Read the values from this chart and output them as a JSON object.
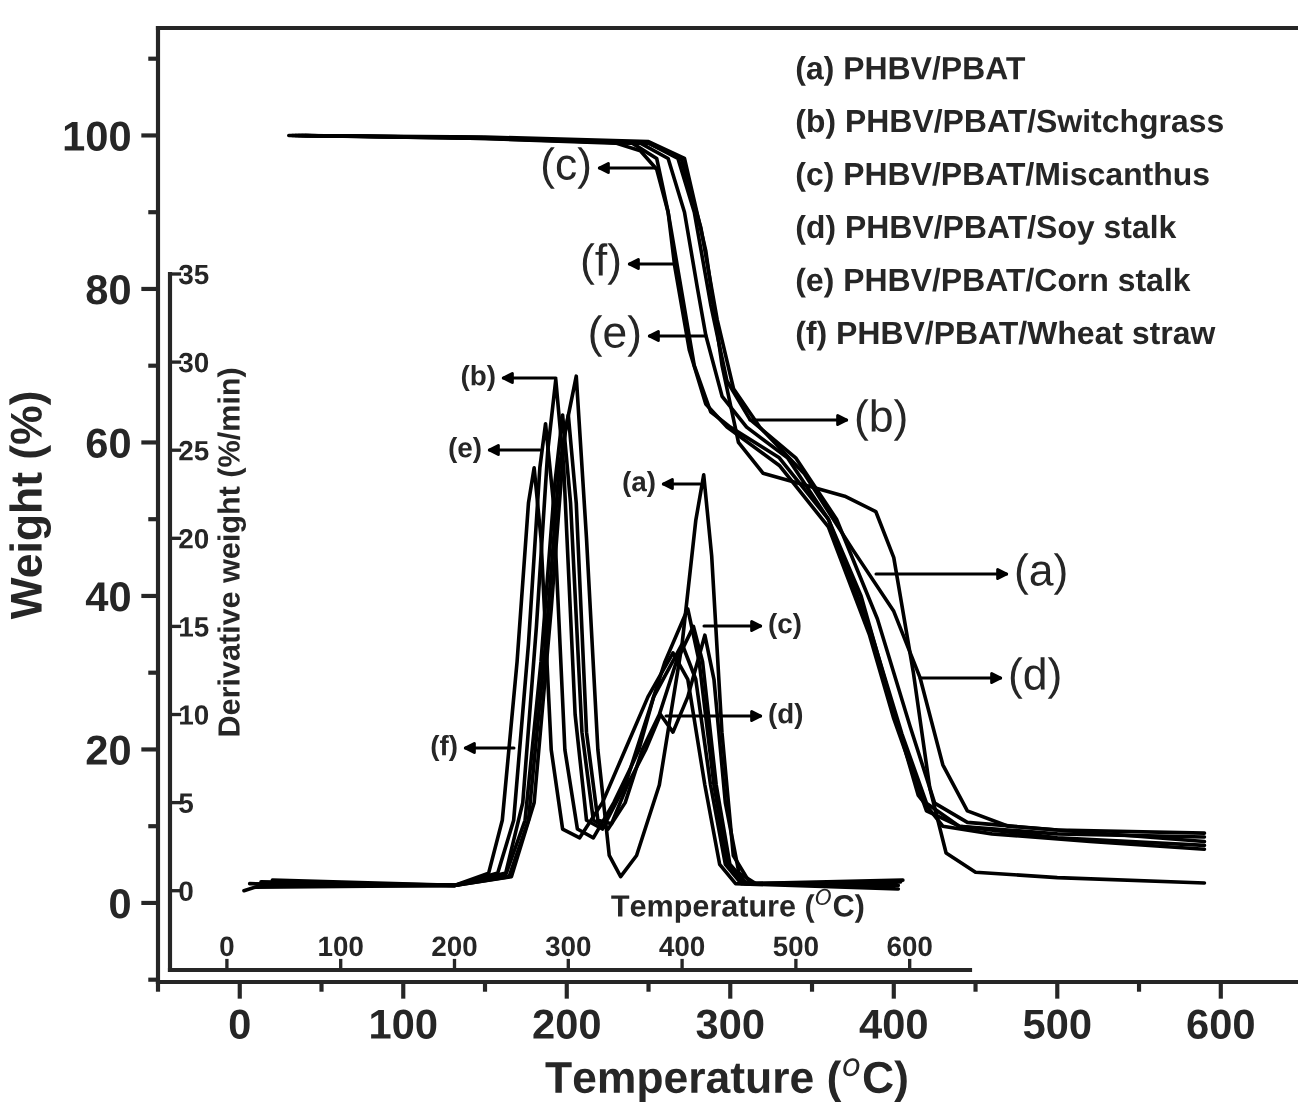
{
  "chart_data": [
    {
      "type": "line",
      "xlabel": "Temperature ($^{o}$C)",
      "ylabel": "Weight (%)",
      "xlim": [
        -50,
        646
      ],
      "ylim": [
        -10.3,
        114
      ],
      "xticks": [
        0,
        100,
        200,
        300,
        400,
        500,
        600
      ],
      "yticks": [
        0,
        20,
        40,
        60,
        80,
        100
      ],
      "grid": false,
      "marker": "none",
      "line_style": "solid",
      "series": [
        {
          "color": "#000000",
          "x": [
            30,
            150,
            250,
            272,
            285,
            295,
            305,
            320,
            345,
            370,
            389,
            400,
            412,
            422,
            432,
            450,
            500,
            590
          ],
          "values": [
            100,
            99.8,
            99.2,
            97,
            85,
            70,
            60,
            56,
            54.5,
            53,
            51,
            45,
            30,
            15,
            6.5,
            4,
            3.3,
            2.6
          ]
        },
        {
          "color": "#000000",
          "x": [
            32,
            150,
            250,
            268,
            278,
            288,
            298,
            312,
            340,
            365,
            390,
            410,
            425,
            445,
            500,
            590
          ],
          "values": [
            100,
            99.7,
            99,
            97,
            90,
            78,
            68,
            63,
            58,
            50,
            37,
            23,
            13,
            10.5,
            9.5,
            9.1
          ]
        },
        {
          "color": "#000000",
          "x": [
            34,
            150,
            230,
            245,
            255,
            262,
            270,
            278,
            288,
            300,
            330,
            360,
            380,
            400,
            415,
            430,
            460,
            520,
            590
          ],
          "values": [
            100,
            99.6,
            99,
            98,
            95.6,
            90,
            80,
            70,
            64,
            62,
            58,
            50,
            40,
            25,
            14,
            10,
            9,
            8,
            7
          ]
        },
        {
          "color": "#000000",
          "x": [
            36,
            150,
            250,
            270,
            282,
            292,
            302,
            318,
            345,
            375,
            400,
            416,
            430,
            445,
            470,
            590
          ],
          "values": [
            100,
            99.7,
            99,
            97,
            88,
            76,
            67,
            62,
            56,
            46,
            38,
            29.4,
            18,
            12,
            10,
            8
          ]
        },
        {
          "color": "#000000",
          "x": [
            38,
            150,
            245,
            262,
            272,
            280,
            285,
            295,
            310,
            335,
            360,
            385,
            405,
            420,
            440,
            500,
            590
          ],
          "values": [
            100,
            99.6,
            99,
            97,
            90,
            80,
            74,
            66,
            62,
            58,
            50,
            36,
            22,
            13,
            10,
            9,
            8.6
          ]
        },
        {
          "color": "#000000",
          "x": [
            40,
            150,
            240,
            255,
            262,
            266,
            275,
            285,
            298,
            330,
            360,
            385,
            400,
            420,
            440,
            500,
            590
          ],
          "values": [
            100,
            99.7,
            99,
            97,
            90,
            83,
            72,
            65,
            62,
            57,
            49,
            35,
            24,
            12,
            10,
            8.5,
            7.5
          ]
        }
      ],
      "annotations": [
        "(a) PHBV/PBAT",
        "(b) PHBV/PBAT/Switchgrass",
        "(c) PHBV/PBAT/Miscanthus",
        "(d) PHBV/PBAT/Soy stalk",
        "(e) PHBV/PBAT/Corn stalk",
        "(f) PHBV/PBAT/Wheat straw",
        "(c)",
        "(f)",
        "(e)",
        "(b)",
        "(a)",
        "(d)"
      ]
    },
    {
      "type": "line",
      "xlabel": "Temperature ($^{O}$C)",
      "ylabel": "Derivative weight (%/min)",
      "xlim": [
        -50,
        653
      ],
      "ylim": [
        -4.5,
        35
      ],
      "xticks": [
        0,
        100,
        200,
        300,
        400,
        500,
        600
      ],
      "yticks": [
        0,
        5,
        10,
        15,
        20,
        25,
        30,
        35
      ],
      "grid": false,
      "marker": "none",
      "line_style": "solid",
      "series": [
        {
          "color": "#000000",
          "x": [
            15,
            30,
            200,
            250,
            270,
            285,
            297,
            307,
            316,
            326,
            336,
            346,
            360,
            380,
            400,
            412,
            419,
            426,
            435,
            445,
            460,
            590
          ],
          "values": [
            0,
            0.3,
            0.3,
            0.8,
            5,
            16,
            26,
            29.2,
            20,
            8,
            2,
            0.8,
            2,
            6,
            14,
            21,
            23.6,
            19,
            9,
            2,
            0.4,
            0.3
          ]
        },
        {
          "color": "#000000",
          "x": [
            20,
            200,
            245,
            260,
            272,
            282,
            289,
            296,
            306,
            316,
            330,
            350,
            365,
            385,
            405,
            415,
            428,
            440,
            455,
            588
          ],
          "values": [
            0.4,
            0.3,
            1,
            5,
            15,
            25,
            29,
            24,
            10,
            4,
            3.5,
            6,
            9,
            13,
            16,
            13,
            6,
            1.5,
            0.4,
            0.4
          ]
        },
        {
          "color": "#000000",
          "x": [
            25,
            200,
            245,
            262,
            276,
            288,
            295,
            302,
            312,
            322,
            335,
            350,
            365,
            380,
            395,
            410,
            418,
            430,
            442,
            457,
            592
          ],
          "values": [
            0.2,
            0.3,
            0.9,
            4,
            13,
            23,
            27,
            22,
            9,
            4,
            3.5,
            5,
            8,
            10,
            13,
            15,
            13,
            6,
            1.5,
            0.4,
            0.5
          ]
        },
        {
          "color": "#000000",
          "x": [
            30,
            200,
            248,
            265,
            280,
            292,
            300,
            307,
            316,
            326,
            338,
            352,
            368,
            381,
            392,
            405,
            420,
            428,
            438,
            450,
            465,
            586
          ],
          "values": [
            0.5,
            0.3,
            0.8,
            4,
            14,
            24,
            27,
            22,
            9,
            4,
            3.8,
            6,
            8,
            10,
            9,
            11,
            14.5,
            12,
            5,
            1,
            0.4,
            0.2
          ]
        },
        {
          "color": "#000000",
          "x": [
            35,
            200,
            238,
            252,
            265,
            275,
            280,
            287,
            297,
            308,
            322,
            340,
            355,
            362,
            375,
            400,
            412,
            425,
            438,
            452,
            594
          ],
          "values": [
            0.3,
            0.3,
            1,
            4,
            14,
            24,
            26.5,
            22,
            8,
            3.5,
            3,
            5,
            7,
            8,
            11,
            14,
            12,
            6,
            1.5,
            0.4,
            0.6
          ]
        },
        {
          "color": "#000000",
          "x": [
            40,
            200,
            230,
            242,
            255,
            265,
            270,
            276,
            285,
            295,
            310,
            330,
            350,
            370,
            392,
            405,
            420,
            433,
            447,
            590
          ],
          "values": [
            0.6,
            0.3,
            1,
            4,
            13,
            22,
            24,
            20,
            8,
            3.5,
            3,
            5,
            8,
            11,
            13.5,
            12,
            6,
            1.5,
            0.4,
            0.1
          ]
        }
      ],
      "annotations": [
        "(b)",
        "(e)",
        "(f)",
        "(a)",
        "(c)",
        "(d)"
      ]
    }
  ]
}
